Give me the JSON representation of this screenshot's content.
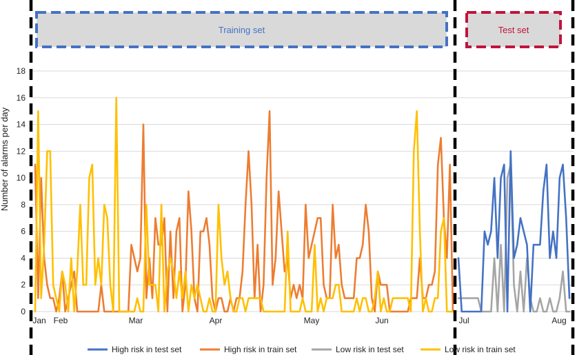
{
  "chart_data": {
    "type": "line",
    "title": "",
    "xlabel": "",
    "ylabel": "Number of alarms per day",
    "ylim": [
      0,
      18
    ],
    "yticks": [
      0,
      2,
      4,
      6,
      8,
      10,
      12,
      14,
      16,
      18
    ],
    "grid": "horizontal",
    "legend_position": "bottom",
    "month_labels": [
      "Jan",
      "Feb",
      "Mar",
      "Apr",
      "May",
      "Jun",
      "Jul",
      "Aug"
    ],
    "sets": [
      {
        "label": "Training set",
        "color": "#4472c4",
        "fill": "#d9d9d9"
      },
      {
        "label": "Test set",
        "color": "#c0143c",
        "fill": "#d9d9d9"
      }
    ],
    "series": [
      {
        "name": "High risk in test set",
        "color": "#4472c4",
        "values": [
          4,
          0,
          0,
          0,
          0,
          0,
          0,
          0,
          6,
          5,
          6,
          10,
          4,
          10,
          11,
          0,
          12,
          4,
          5,
          7,
          6,
          5,
          0,
          5,
          5,
          5,
          9,
          11,
          4,
          6,
          4,
          10,
          11,
          7,
          1
        ]
      },
      {
        "name": "High risk in train set",
        "color": "#ed7d31",
        "values": [
          11,
          1,
          10,
          4,
          2,
          1,
          1,
          0,
          1,
          3,
          0,
          1,
          2,
          3,
          0,
          0,
          0,
          0,
          0,
          0,
          0,
          0,
          2,
          0,
          0,
          0,
          0,
          0,
          0,
          0,
          0,
          0,
          5,
          4,
          3,
          4,
          14,
          1,
          4,
          1,
          7,
          5,
          5,
          7,
          0,
          6,
          1,
          6,
          7,
          0,
          2,
          9,
          6,
          1,
          0,
          6,
          6,
          7,
          5,
          1,
          0,
          1,
          1,
          0,
          0,
          1,
          0,
          1,
          1,
          3,
          8,
          12,
          8,
          1,
          5,
          0,
          2,
          10,
          15,
          2,
          4,
          9,
          6,
          3,
          4,
          1,
          2,
          1,
          2,
          1,
          8,
          4,
          5,
          6,
          7,
          7,
          2,
          1,
          1,
          8,
          4,
          5,
          2,
          1,
          1,
          1,
          1,
          4,
          4,
          5,
          8,
          6,
          1,
          0,
          3,
          2,
          2,
          2,
          0,
          0,
          0,
          0,
          0,
          0,
          0,
          1,
          1,
          1,
          4,
          1,
          1,
          2,
          2,
          3,
          11,
          13,
          7,
          4,
          11,
          0
        ]
      },
      {
        "name": "Low risk in test set",
        "color": "#a5a5a5",
        "values": [
          1,
          1,
          1,
          1,
          1,
          1,
          1,
          0,
          0,
          0,
          0,
          4,
          0,
          5,
          0,
          10,
          11,
          2,
          0,
          3,
          0,
          4,
          1,
          0,
          0,
          1,
          0,
          0,
          1,
          0,
          0,
          1,
          3,
          0,
          0
        ]
      },
      {
        "name": "Low risk in train set",
        "color": "#ffc000",
        "values": [
          0,
          15,
          1,
          5,
          12,
          12,
          2,
          1,
          0,
          3,
          2,
          0,
          4,
          0,
          3,
          8,
          2,
          2,
          10,
          11,
          2,
          4,
          2,
          8,
          7,
          2,
          0,
          16,
          0,
          0,
          0,
          0,
          0,
          0,
          1,
          0,
          0,
          8,
          2,
          2,
          2,
          0,
          8,
          0,
          3,
          4,
          3,
          1,
          3,
          1,
          3,
          0,
          2,
          1,
          2,
          1,
          0,
          0,
          1,
          0,
          0,
          8,
          4,
          2,
          3,
          1,
          0,
          0,
          1,
          1,
          0,
          1,
          1,
          1,
          1,
          1,
          0,
          0,
          0,
          0,
          0,
          0,
          0,
          0,
          6,
          0,
          0,
          0,
          0,
          1,
          0,
          0,
          0,
          5,
          0,
          1,
          0,
          1,
          1,
          1,
          2,
          2,
          0,
          0,
          0,
          0,
          0,
          1,
          0,
          1,
          1,
          0,
          0,
          1,
          3,
          0,
          1,
          0,
          0,
          1,
          1,
          1,
          1,
          1,
          1,
          0,
          12,
          15,
          6,
          0,
          1,
          0,
          0,
          1,
          1,
          6,
          7,
          0,
          0,
          0
        ]
      }
    ]
  }
}
